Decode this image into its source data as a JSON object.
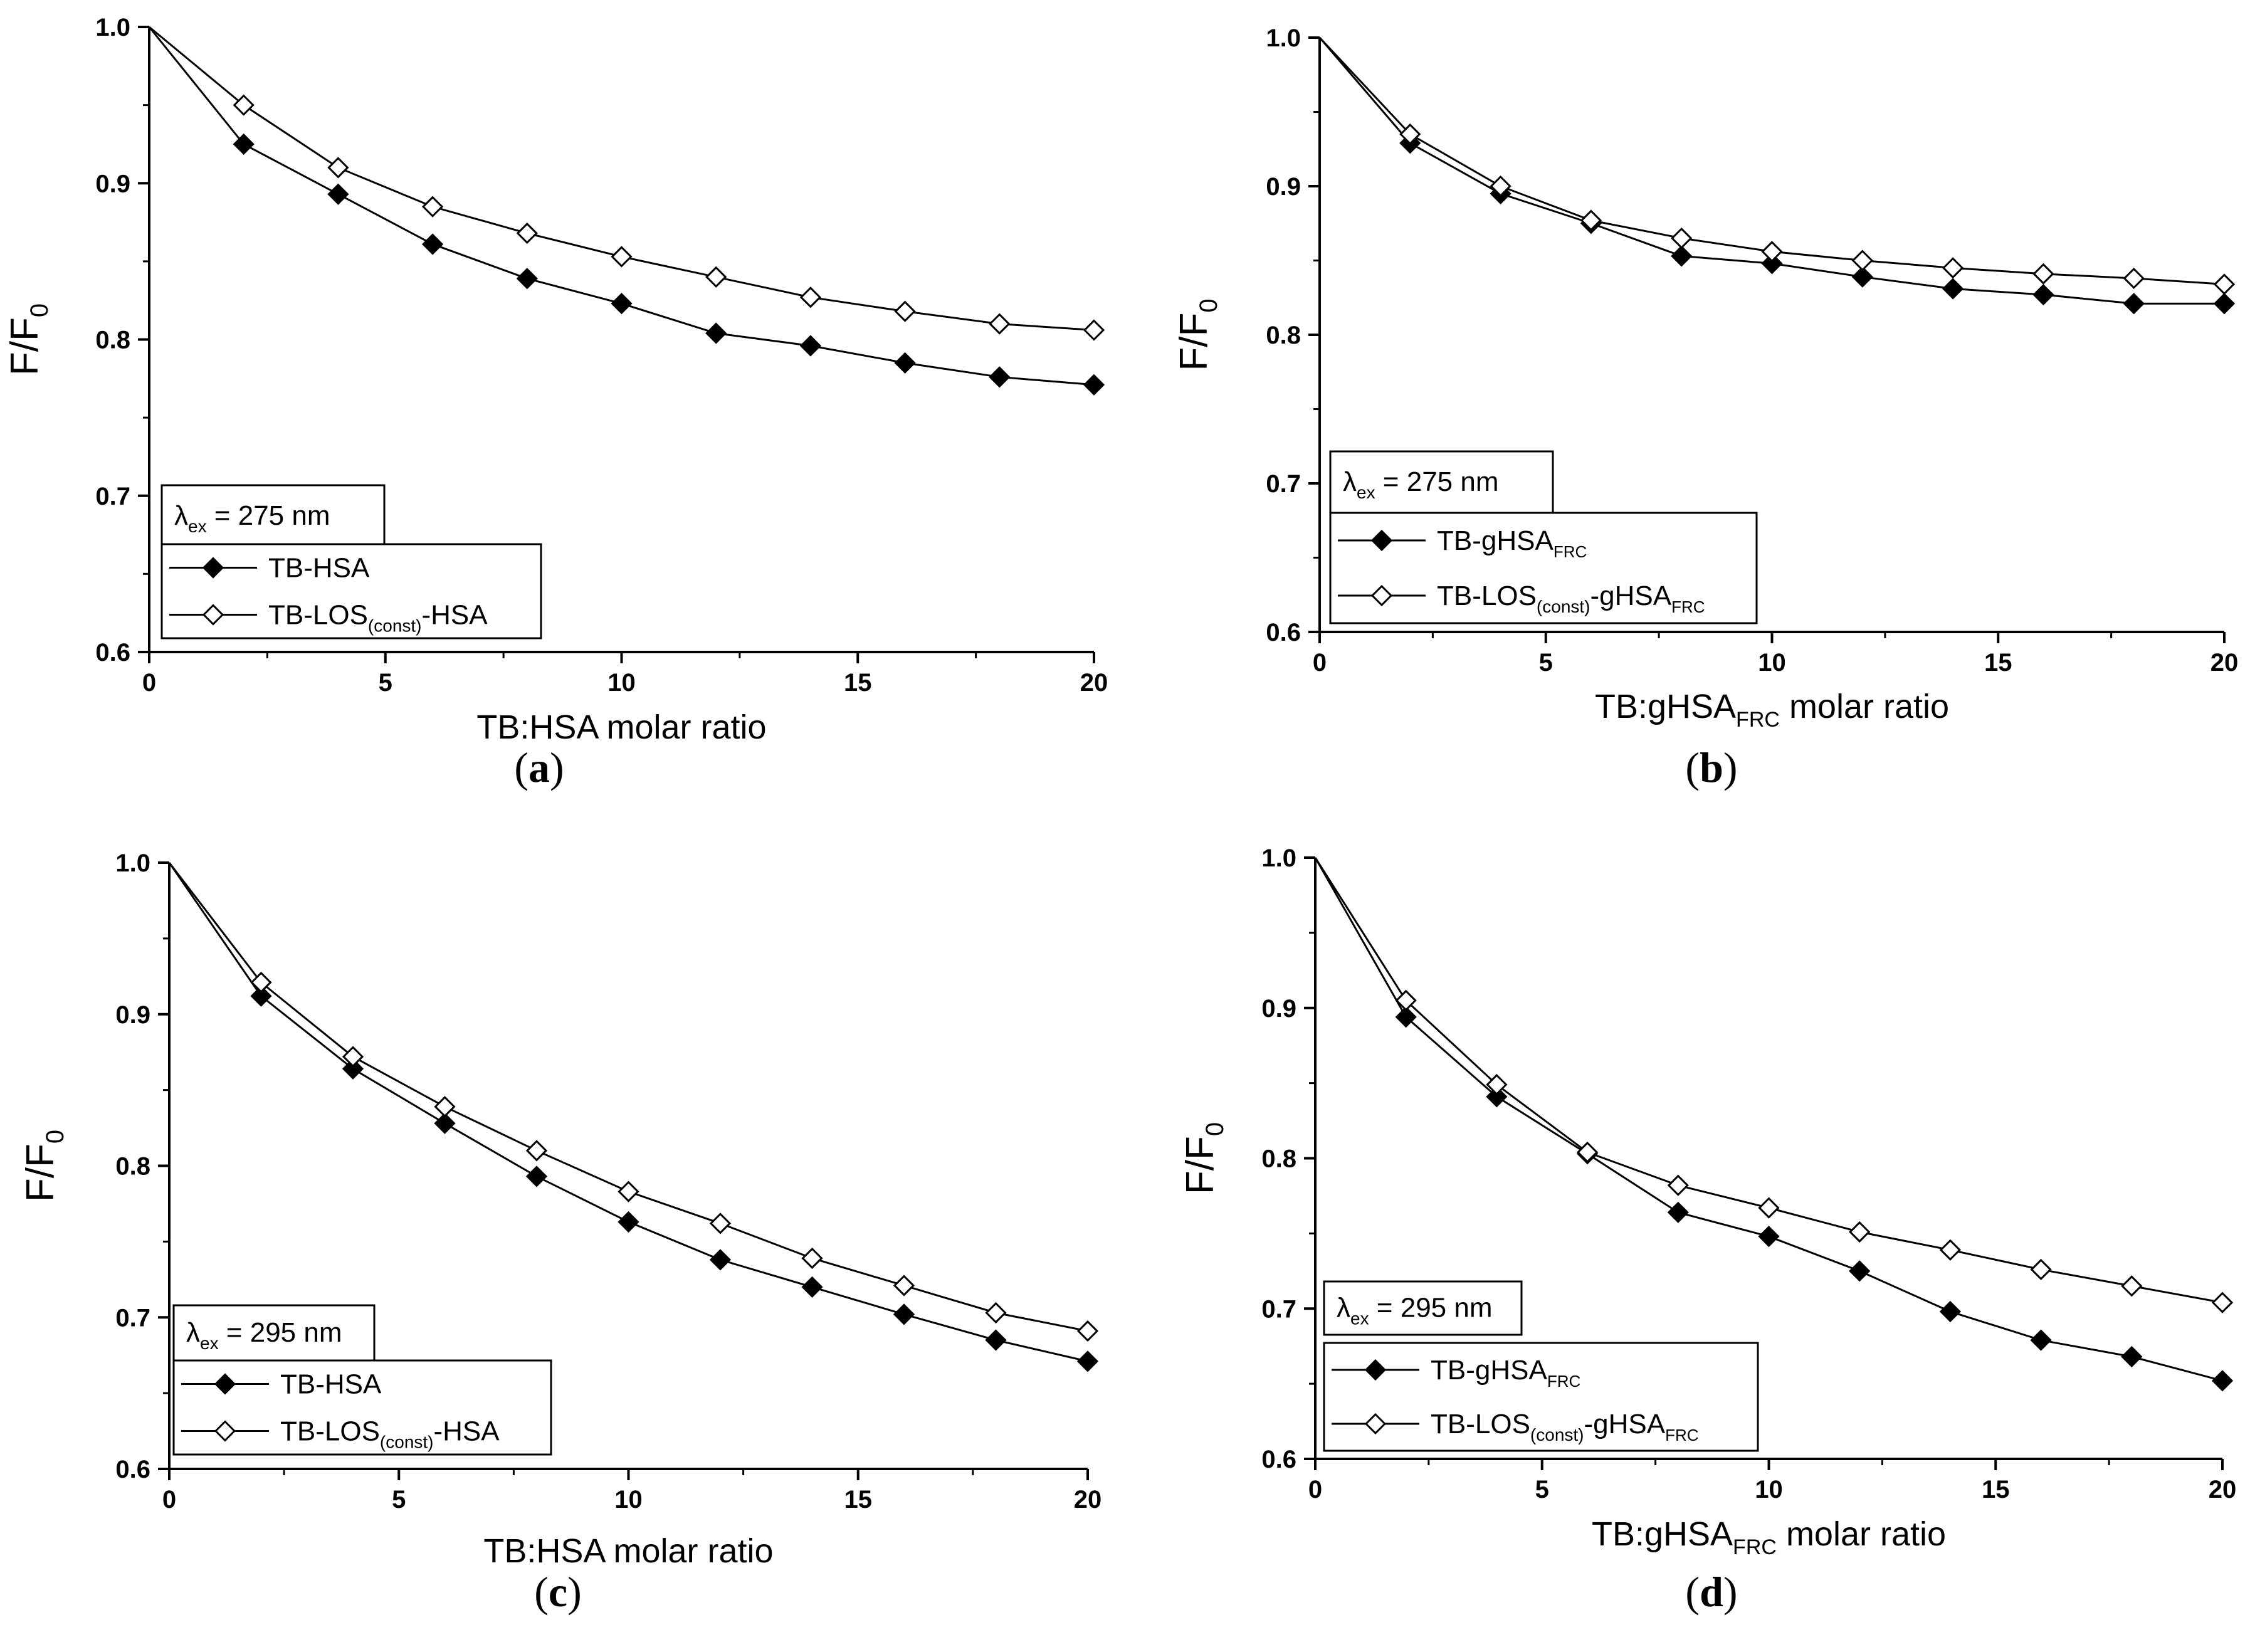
{
  "chart_data": [
    {
      "type": "line",
      "panel_label": "a",
      "xlabel": "TB:HSA molar ratio",
      "xlabel_sub": "",
      "xlabel_suffix": "",
      "ylabel_main": "F/F",
      "ylabel_sub": "0",
      "xlim": [
        0,
        20
      ],
      "ylim": [
        0.6,
        1.0
      ],
      "xticks": [
        "0",
        "5",
        "10",
        "15",
        "20"
      ],
      "yticks": [
        "0.6",
        "0.7",
        "0.8",
        "0.9",
        "1.0"
      ],
      "annotation": {
        "lambda": "λ",
        "sub": "ex",
        "text": " = 275 nm"
      },
      "x": [
        0,
        2,
        4,
        6,
        8,
        10,
        12,
        14,
        16,
        18,
        20
      ],
      "series": [
        {
          "name": "TB-HSA",
          "name_parts": [
            "TB-HSA"
          ],
          "marker": "filled-diamond",
          "values": [
            1.0,
            0.925,
            0.893,
            0.861,
            0.839,
            0.823,
            0.804,
            0.796,
            0.785,
            0.776,
            0.771
          ]
        },
        {
          "name": "TB-LOS(const)-HSA",
          "name_parts": [
            "TB-LOS",
            "(const)",
            "-HSA"
          ],
          "marker": "open-diamond",
          "values": [
            1.0,
            0.95,
            0.91,
            0.885,
            0.868,
            0.853,
            0.84,
            0.827,
            0.818,
            0.81,
            0.806
          ]
        }
      ]
    },
    {
      "type": "line",
      "panel_label": "b",
      "xlabel": "TB:gHSA",
      "xlabel_sub": "FRC",
      "xlabel_suffix": " molar ratio",
      "ylabel_main": "F/F",
      "ylabel_sub": "0",
      "xlim": [
        0,
        20
      ],
      "ylim": [
        0.6,
        1.0
      ],
      "xticks": [
        "0",
        "5",
        "10",
        "15",
        "20"
      ],
      "yticks": [
        "0.6",
        "0.7",
        "0.8",
        "0.9",
        "1.0"
      ],
      "annotation": {
        "lambda": "λ",
        "sub": "ex",
        "text": " = 275 nm"
      },
      "x": [
        0,
        2,
        4,
        6,
        8,
        10,
        12,
        14,
        16,
        18,
        20
      ],
      "series": [
        {
          "name": "TB-gHSA(FRC)",
          "name_parts": [
            "TB-gHSA",
            "FRC",
            ""
          ],
          "marker": "filled-diamond",
          "values": [
            1.0,
            0.929,
            0.895,
            0.875,
            0.853,
            0.848,
            0.839,
            0.831,
            0.827,
            0.821,
            0.821
          ]
        },
        {
          "name": "TB-LOS(const)-gHSA(FRC)",
          "name_parts": [
            "TB-LOS",
            "(const)",
            "-gHSA",
            "FRC"
          ],
          "marker": "open-diamond",
          "values": [
            1.0,
            0.935,
            0.9,
            0.877,
            0.865,
            0.856,
            0.85,
            0.845,
            0.841,
            0.838,
            0.834
          ]
        }
      ]
    },
    {
      "type": "line",
      "panel_label": "c",
      "xlabel": "TB:HSA molar ratio",
      "xlabel_sub": "",
      "xlabel_suffix": "",
      "ylabel_main": "F/F",
      "ylabel_sub": "0",
      "xlim": [
        0,
        20
      ],
      "ylim": [
        0.6,
        1.0
      ],
      "xticks": [
        "0",
        "5",
        "10",
        "15",
        "20"
      ],
      "yticks": [
        "0.6",
        "0.7",
        "0.8",
        "0.9",
        "1.0"
      ],
      "annotation": {
        "lambda": "λ",
        "sub": "ex",
        "text": " = 295 nm"
      },
      "x": [
        0,
        2,
        4,
        6,
        8,
        10,
        12,
        14,
        16,
        18,
        20
      ],
      "series": [
        {
          "name": "TB-HSA",
          "name_parts": [
            "TB-HSA"
          ],
          "marker": "filled-diamond",
          "values": [
            1.0,
            0.912,
            0.864,
            0.828,
            0.793,
            0.763,
            0.738,
            0.72,
            0.702,
            0.685,
            0.671
          ]
        },
        {
          "name": "TB-LOS(const)-HSA",
          "name_parts": [
            "TB-LOS",
            "(const)",
            "-HSA"
          ],
          "marker": "open-diamond",
          "values": [
            1.0,
            0.921,
            0.872,
            0.839,
            0.81,
            0.783,
            0.762,
            0.739,
            0.721,
            0.703,
            0.691
          ]
        }
      ]
    },
    {
      "type": "line",
      "panel_label": "d",
      "xlabel": "TB:gHSA",
      "xlabel_sub": "FRC",
      "xlabel_suffix": " molar ratio",
      "ylabel_main": "F/F",
      "ylabel_sub": "0",
      "xlim": [
        0,
        20
      ],
      "ylim": [
        0.6,
        1.0
      ],
      "xticks": [
        "0",
        "5",
        "10",
        "15",
        "20"
      ],
      "yticks": [
        "0.6",
        "0.7",
        "0.8",
        "0.9",
        "1.0"
      ],
      "annotation": {
        "lambda": "λ",
        "sub": "ex",
        "text": " = 295 nm"
      },
      "x": [
        0,
        2,
        4,
        6,
        8,
        10,
        12,
        14,
        16,
        18,
        20
      ],
      "series": [
        {
          "name": "TB-gHSA(FRC)",
          "name_parts": [
            "TB-gHSA",
            "FRC",
            ""
          ],
          "marker": "filled-diamond",
          "values": [
            1.0,
            0.894,
            0.841,
            0.803,
            0.764,
            0.748,
            0.725,
            0.698,
            0.679,
            0.668,
            0.652
          ]
        },
        {
          "name": "TB-LOS(const)-gHSA(FRC)",
          "name_parts": [
            "TB-LOS",
            "(const)",
            "-gHSA",
            "FRC"
          ],
          "marker": "open-diamond",
          "values": [
            1.0,
            0.905,
            0.849,
            0.804,
            0.782,
            0.767,
            0.751,
            0.739,
            0.726,
            0.715,
            0.704
          ]
        }
      ]
    }
  ]
}
